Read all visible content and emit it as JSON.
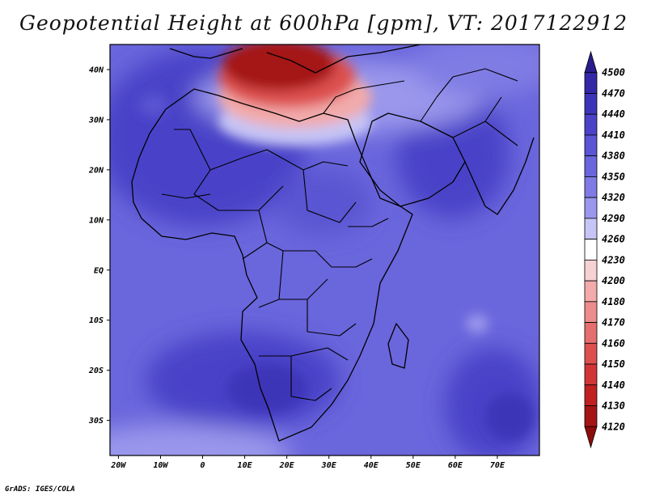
{
  "title": "Geopotential Height at 600hPa [gpm], VT: 2017122912",
  "credit": "GrADS: IGES/COLA",
  "map": {
    "lon_range": [
      -22,
      80
    ],
    "lat_range": [
      -37,
      45
    ],
    "lon_ticks": [
      {
        "value": -20,
        "label": "20W"
      },
      {
        "value": -10,
        "label": "10W"
      },
      {
        "value": 0,
        "label": "0"
      },
      {
        "value": 10,
        "label": "10E"
      },
      {
        "value": 20,
        "label": "20E"
      },
      {
        "value": 30,
        "label": "30E"
      },
      {
        "value": 40,
        "label": "40E"
      },
      {
        "value": 50,
        "label": "50E"
      },
      {
        "value": 60,
        "label": "60E"
      },
      {
        "value": 70,
        "label": "70E"
      }
    ],
    "lat_ticks": [
      {
        "value": 40,
        "label": "40N"
      },
      {
        "value": 30,
        "label": "30N"
      },
      {
        "value": 20,
        "label": "20N"
      },
      {
        "value": 10,
        "label": "10N"
      },
      {
        "value": 0,
        "label": "EQ"
      },
      {
        "value": -10,
        "label": "10S"
      },
      {
        "value": -20,
        "label": "20S"
      },
      {
        "value": -30,
        "label": "30S"
      }
    ]
  },
  "colorbar": {
    "levels": [
      "4500",
      "4470",
      "4440",
      "4410",
      "4380",
      "4350",
      "4320",
      "4290",
      "4260",
      "4230",
      "4200",
      "4180",
      "4170",
      "4160",
      "4150",
      "4140",
      "4130",
      "4120"
    ],
    "colors": [
      "#2a1c8c",
      "#3428a6",
      "#3d35b8",
      "#4a43c8",
      "#5a55d2",
      "#6a66dc",
      "#7f7be4",
      "#9a97ec",
      "#c6c5f5",
      "#ffffff",
      "#f7d2d2",
      "#f2aaaa",
      "#ec8c8c",
      "#e56e6e",
      "#dd5050",
      "#d23535",
      "#c02020",
      "#a51515",
      "#8c0c0c"
    ]
  }
}
